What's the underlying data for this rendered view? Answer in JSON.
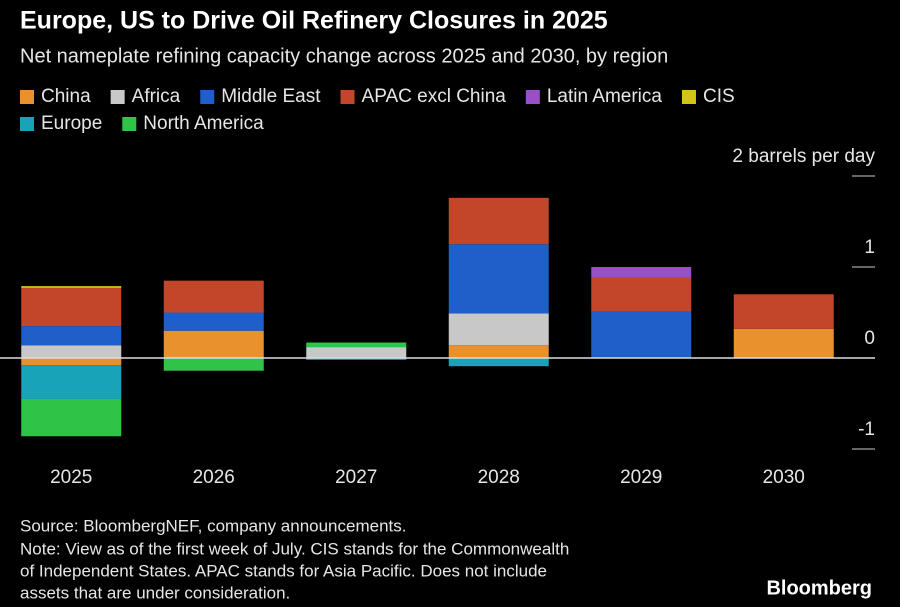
{
  "chart_data": {
    "type": "stacked_bar",
    "title": "Europe, US to Drive Oil Refinery Closures in 2025",
    "subtitle": "Net nameplate refining capacity change across 2025 and 2030, by region",
    "categories": [
      "2025",
      "2026",
      "2027",
      "2028",
      "2029",
      "2030"
    ],
    "series": [
      {
        "name": "China",
        "color": "#e8912d",
        "values": [
          -0.08,
          0.3,
          0,
          0.14,
          0,
          0.32
        ]
      },
      {
        "name": "Africa",
        "color": "#c8c8c8",
        "values": [
          0.14,
          0,
          0.12,
          0.35,
          0,
          0
        ]
      },
      {
        "name": "Middle East",
        "color": "#1f5fc9",
        "values": [
          0.21,
          0.2,
          0,
          0.76,
          0.51,
          0
        ]
      },
      {
        "name": "APAC excl China",
        "color": "#c4462a",
        "values": [
          0.42,
          0.35,
          0,
          0.51,
          0.37,
          0.38
        ]
      },
      {
        "name": "Latin America",
        "color": "#9a4fc8",
        "values": [
          0,
          0,
          0,
          0,
          0.12,
          0
        ]
      },
      {
        "name": "CIS",
        "color": "#d4c31a",
        "values": [
          0.02,
          0,
          0,
          0,
          0,
          0
        ]
      },
      {
        "name": "Europe",
        "color": "#19a3b8",
        "values": [
          -0.37,
          0,
          -0.02,
          -0.09,
          0,
          0
        ]
      },
      {
        "name": "North America",
        "color": "#2fc447",
        "values": [
          -0.41,
          -0.14,
          0.05,
          0,
          0,
          0
        ]
      }
    ],
    "ylim": [
      -1,
      2
    ],
    "yticks": [
      {
        "value": 2,
        "label": "2 barrels per day"
      },
      1,
      0,
      -1
    ],
    "source": "Source: BloombergNEF, company announcements.",
    "note_lines": [
      "Note: View as of the first week of July. CIS stands for the Commonwealth",
      "of Independent States. APAC stands for Asia Pacific. Does not include",
      "assets that are under consideration."
    ],
    "brand": "Bloomberg"
  }
}
